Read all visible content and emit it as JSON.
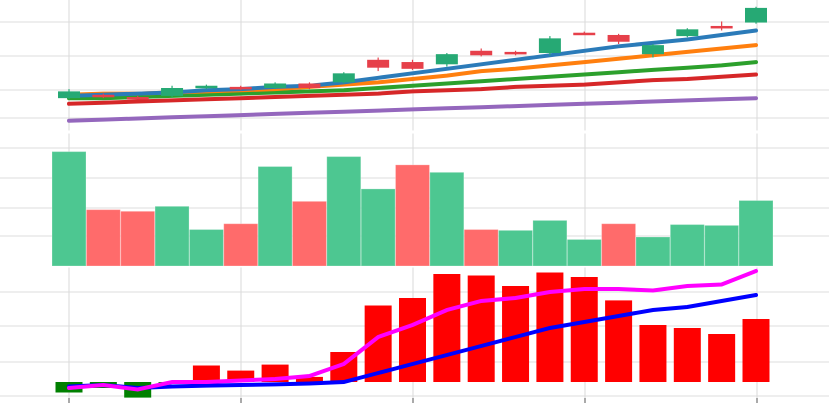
{
  "chart_data": [
    {
      "type": "candlestick",
      "panel": "price",
      "grid": true,
      "x": [
        1,
        2,
        3,
        4,
        5,
        6,
        7,
        8,
        9,
        10,
        11,
        12,
        13,
        14,
        15,
        16,
        17,
        18,
        19,
        20,
        21
      ],
      "ohlc": [
        {
          "open": 90,
          "high": 98,
          "low": 89,
          "close": 96
        },
        {
          "open": 93,
          "high": 94,
          "low": 90,
          "close": 92
        },
        {
          "open": 91,
          "high": 92,
          "low": 89,
          "close": 90
        },
        {
          "open": 92,
          "high": 101,
          "low": 91,
          "close": 99
        },
        {
          "open": 100,
          "high": 102,
          "low": 98,
          "close": 101
        },
        {
          "open": 100,
          "high": 101,
          "low": 97,
          "close": 98
        },
        {
          "open": 99,
          "high": 104,
          "low": 98,
          "close": 103
        },
        {
          "open": 103,
          "high": 104,
          "low": 98,
          "close": 99
        },
        {
          "open": 104,
          "high": 113,
          "low": 103,
          "close": 112
        },
        {
          "open": 124,
          "high": 126,
          "low": 114,
          "close": 117
        },
        {
          "open": 122,
          "high": 124,
          "low": 115,
          "close": 116
        },
        {
          "open": 120,
          "high": 130,
          "low": 118,
          "close": 129
        },
        {
          "open": 132,
          "high": 134,
          "low": 127,
          "close": 128
        },
        {
          "open": 131,
          "high": 132,
          "low": 128,
          "close": 129
        },
        {
          "open": 130,
          "high": 145,
          "low": 128,
          "close": 143
        },
        {
          "open": 148,
          "high": 149,
          "low": 146,
          "close": 147
        },
        {
          "open": 146,
          "high": 147,
          "low": 138,
          "close": 140
        },
        {
          "open": 129,
          "high": 138,
          "low": 126,
          "close": 137
        },
        {
          "open": 145,
          "high": 152,
          "low": 144,
          "close": 151
        },
        {
          "open": 154,
          "high": 158,
          "low": 150,
          "close": 152
        },
        {
          "open": 157,
          "high": 171,
          "low": 156,
          "close": 170
        }
      ],
      "series": [
        {
          "values": [
            92,
            93,
            94,
            95,
            97,
            98,
            100,
            101,
            104,
            108,
            112,
            116,
            120,
            124,
            128,
            132,
            136,
            139,
            142,
            146,
            150
          ]
        },
        {
          "values": [
            93,
            94,
            94,
            95,
            96,
            97,
            98,
            100,
            102,
            104,
            107,
            110,
            114,
            116,
            119,
            122,
            125,
            128,
            131,
            134,
            137
          ]
        },
        {
          "values": [
            90,
            90,
            91,
            92,
            93,
            94,
            95,
            96,
            97,
            99,
            101,
            103,
            105,
            107,
            109,
            111,
            113,
            115,
            117,
            119,
            122
          ]
        },
        {
          "values": [
            85,
            86,
            87,
            88,
            89,
            90,
            91,
            92,
            93,
            94,
            96,
            97,
            98,
            100,
            101,
            102,
            104,
            106,
            107,
            109,
            111
          ]
        },
        {
          "values": [
            70,
            71,
            72,
            73,
            74,
            75,
            76,
            77,
            78,
            79,
            80,
            81,
            82,
            83,
            84,
            85,
            86,
            87,
            88,
            89,
            90
          ]
        }
      ],
      "ylim": [
        60,
        177
      ],
      "colors": {
        "up": "#26a974",
        "down": "#e6404a",
        "series": [
          "#2b7bb9",
          "#ff7f0e",
          "#2ca02c",
          "#d62728",
          "#9467bd"
        ]
      }
    },
    {
      "type": "bar",
      "panel": "volume",
      "grid": true,
      "x": [
        1,
        2,
        3,
        4,
        5,
        6,
        7,
        8,
        9,
        10,
        11,
        12,
        13,
        14,
        15,
        16,
        17,
        18,
        19,
        20,
        21
      ],
      "values": [
        138,
        68,
        66,
        72,
        44,
        51,
        120,
        78,
        132,
        93,
        122,
        113,
        44,
        43,
        55,
        32,
        51,
        35,
        50,
        49,
        79
      ],
      "direction": [
        "up",
        "down",
        "down",
        "up",
        "up",
        "down",
        "up",
        "down",
        "up",
        "up",
        "down",
        "up",
        "down",
        "up",
        "up",
        "up",
        "down",
        "up",
        "up",
        "up",
        "up"
      ],
      "ylim": [
        0,
        152
      ],
      "colors": {
        "up": "#4dc791",
        "down": "#ff6b6b"
      }
    },
    {
      "type": "bar",
      "panel": "indicator",
      "grid": true,
      "x": [
        1,
        2,
        3,
        4,
        5,
        6,
        7,
        8,
        9,
        10,
        11,
        12,
        13,
        14,
        15,
        16,
        17,
        18,
        19,
        20,
        21
      ],
      "values": [
        -0.35,
        -0.2,
        -0.52,
        -0.03,
        0.55,
        0.38,
        0.58,
        0.17,
        1.0,
        2.55,
        2.8,
        3.6,
        3.55,
        3.2,
        3.65,
        3.5,
        2.72,
        1.9,
        1.8,
        1.6,
        2.1
      ],
      "series": [
        {
          "values": [
            0.0,
            0.05,
            0.3,
            0.2,
            0.1,
            0.1,
            0.1,
            0.1,
            0.05,
            0.15,
            0.1,
            -0.05,
            0.1,
            0.05,
            0.1,
            0.1,
            0.15,
            0.1,
            0.0,
            0.15,
            0.1
          ],
          "style": "line",
          "ref": "blue-base"
        },
        {
          "values": [
            -0.15,
            -0.1,
            -0.2,
            -0.15,
            -0.12,
            -0.1,
            -0.08,
            -0.05,
            0.0,
            0.3,
            0.6,
            0.9,
            1.2,
            1.5,
            1.8,
            2.0,
            2.2,
            2.4,
            2.5,
            2.7,
            2.9
          ]
        },
        {
          "values": [
            -0.2,
            -0.1,
            -0.25,
            0.0,
            0.0,
            0.05,
            0.1,
            0.2,
            0.6,
            1.5,
            1.9,
            2.4,
            2.7,
            2.8,
            3.0,
            3.1,
            3.1,
            3.05,
            3.2,
            3.25,
            3.7
          ]
        }
      ],
      "ylim": [
        -0.6,
        3.8
      ],
      "colors": {
        "pos": "#ff0000",
        "neg": "#008000",
        "series": [
          "#0000ff",
          "#0000ff",
          "#ff00ff"
        ]
      }
    }
  ]
}
